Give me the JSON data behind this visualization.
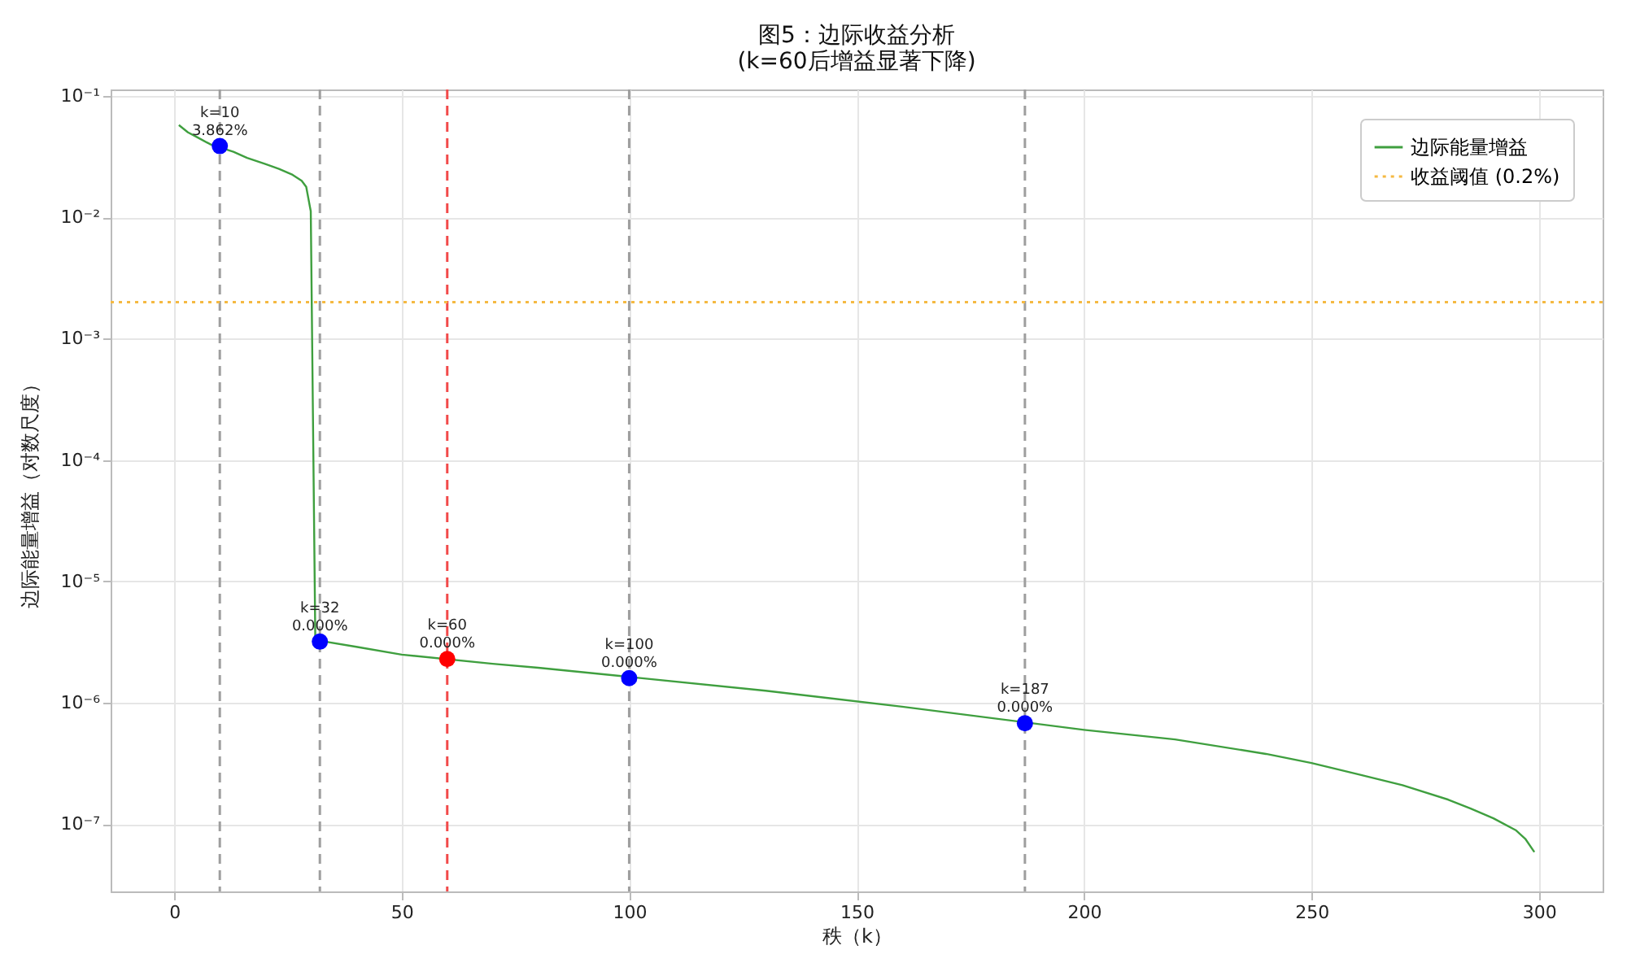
{
  "chart_data": {
    "type": "line",
    "title": "图5：边际收益分析",
    "subtitle": "(k=60后增益显著下降)",
    "xlabel": "秩（k）",
    "ylabel": "边际能量增益（对数尺度）",
    "log": "y",
    "grid": true,
    "legend": "top right",
    "xlim": [
      -14,
      314
    ],
    "xticks": [
      0,
      50,
      100,
      150,
      200,
      250,
      300
    ],
    "ylim": [
      2.8e-08,
      0.113
    ],
    "yticks": [
      {
        "value": 0.1,
        "label": "10⁻¹"
      },
      {
        "value": 0.01,
        "label": "10⁻²"
      },
      {
        "value": 0.001,
        "label": "10⁻³"
      },
      {
        "value": 0.0001,
        "label": "10⁻⁴"
      },
      {
        "value": 1e-05,
        "label": "10⁻⁵"
      },
      {
        "value": 1e-06,
        "label": "10⁻⁶"
      },
      {
        "value": 1e-07,
        "label": "10⁻⁷"
      }
    ],
    "series": [
      {
        "name": "边际能量增益",
        "color": "#3f9f3f",
        "marker": "none",
        "line_style": "solid",
        "x": [
          1,
          3,
          5,
          8,
          13,
          16,
          20,
          23,
          26,
          28,
          29,
          30,
          31,
          40,
          50,
          70,
          80,
          130,
          160,
          200,
          220,
          240,
          250,
          260,
          270,
          280,
          285,
          290,
          295,
          297,
          299
        ],
        "values": [
          0.0575,
          0.0501,
          0.0457,
          0.0398,
          0.0347,
          0.0309,
          0.0275,
          0.0251,
          0.0224,
          0.02,
          0.0178,
          0.0112,
          3.3e-06,
          2.9e-06,
          2.5e-06,
          2.1e-06,
          1.95e-06,
          1.26e-06,
          9.3e-07,
          6e-07,
          5e-07,
          3.8e-07,
          3.2e-07,
          2.6e-07,
          2.1e-07,
          1.6e-07,
          1.35e-07,
          1.12e-07,
          8.9e-08,
          7.6e-08,
          5.9e-08
        ]
      },
      {
        "type": "scatter",
        "marker": "circle",
        "x": [
          10,
          32,
          60,
          100,
          187
        ],
        "values": [
          0.03862,
          3.2e-06,
          2.3e-06,
          1.6e-06,
          6.8e-07
        ],
        "colors": [
          "#0000ff",
          "#0000ff",
          "#ff0000",
          "#0000ff",
          "#0000ff"
        ]
      }
    ],
    "ref_lines": [
      {
        "axis": "x",
        "value": 10,
        "color": "#9e9e9e",
        "line_style": "dashed"
      },
      {
        "axis": "x",
        "value": 32,
        "color": "#9e9e9e",
        "line_style": "dashed"
      },
      {
        "axis": "x",
        "value": 60,
        "color": "#f24a4a",
        "line_style": "dashed"
      },
      {
        "axis": "x",
        "value": 100,
        "color": "#9e9e9e",
        "line_style": "dashed"
      },
      {
        "axis": "x",
        "value": 187,
        "color": "#9e9e9e",
        "line_style": "dashed"
      },
      {
        "axis": "y",
        "value": 0.002,
        "label": "收益阈值 (0.2%)",
        "color": "#f5b942",
        "line_style": "dotted"
      }
    ],
    "annotations": [
      {
        "text": "k=10\n3.862%",
        "x": 10,
        "y": 0.03862
      },
      {
        "text": "k=32\n0.000%",
        "x": 32,
        "y": 3.2e-06
      },
      {
        "text": "k=60\n0.000%",
        "x": 60,
        "y": 2.3e-06
      },
      {
        "text": "k=100\n0.000%",
        "x": 100,
        "y": 1.6e-06
      },
      {
        "text": "k=187\n0.000%",
        "x": 187,
        "y": 6.8e-07
      }
    ]
  }
}
